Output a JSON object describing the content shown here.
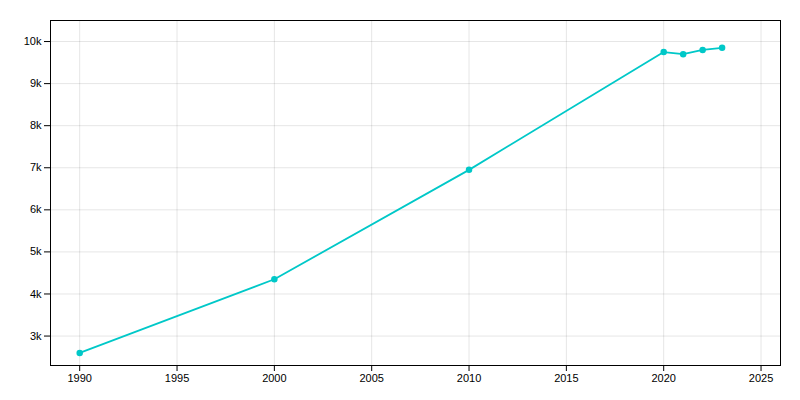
{
  "chart_data": {
    "type": "line",
    "x": [
      1990,
      2000,
      2010,
      2020,
      2021,
      2022,
      2023
    ],
    "values": [
      2600,
      4350,
      6950,
      9750,
      9700,
      9800,
      9850
    ],
    "color": "#00C8C8",
    "marker": "circle",
    "xlim": [
      1988.5,
      2026
    ],
    "ylim": [
      2300,
      10500
    ],
    "xticks": [
      1990,
      1995,
      2000,
      2005,
      2010,
      2015,
      2020,
      2025
    ],
    "yticks": [
      {
        "value": 3000,
        "label": "3k"
      },
      {
        "value": 4000,
        "label": "4k"
      },
      {
        "value": 5000,
        "label": "5k"
      },
      {
        "value": 6000,
        "label": "6k"
      },
      {
        "value": 7000,
        "label": "7k"
      },
      {
        "value": 8000,
        "label": "8k"
      },
      {
        "value": 9000,
        "label": "9k"
      },
      {
        "value": 10000,
        "label": "10k"
      }
    ],
    "grid": true
  }
}
